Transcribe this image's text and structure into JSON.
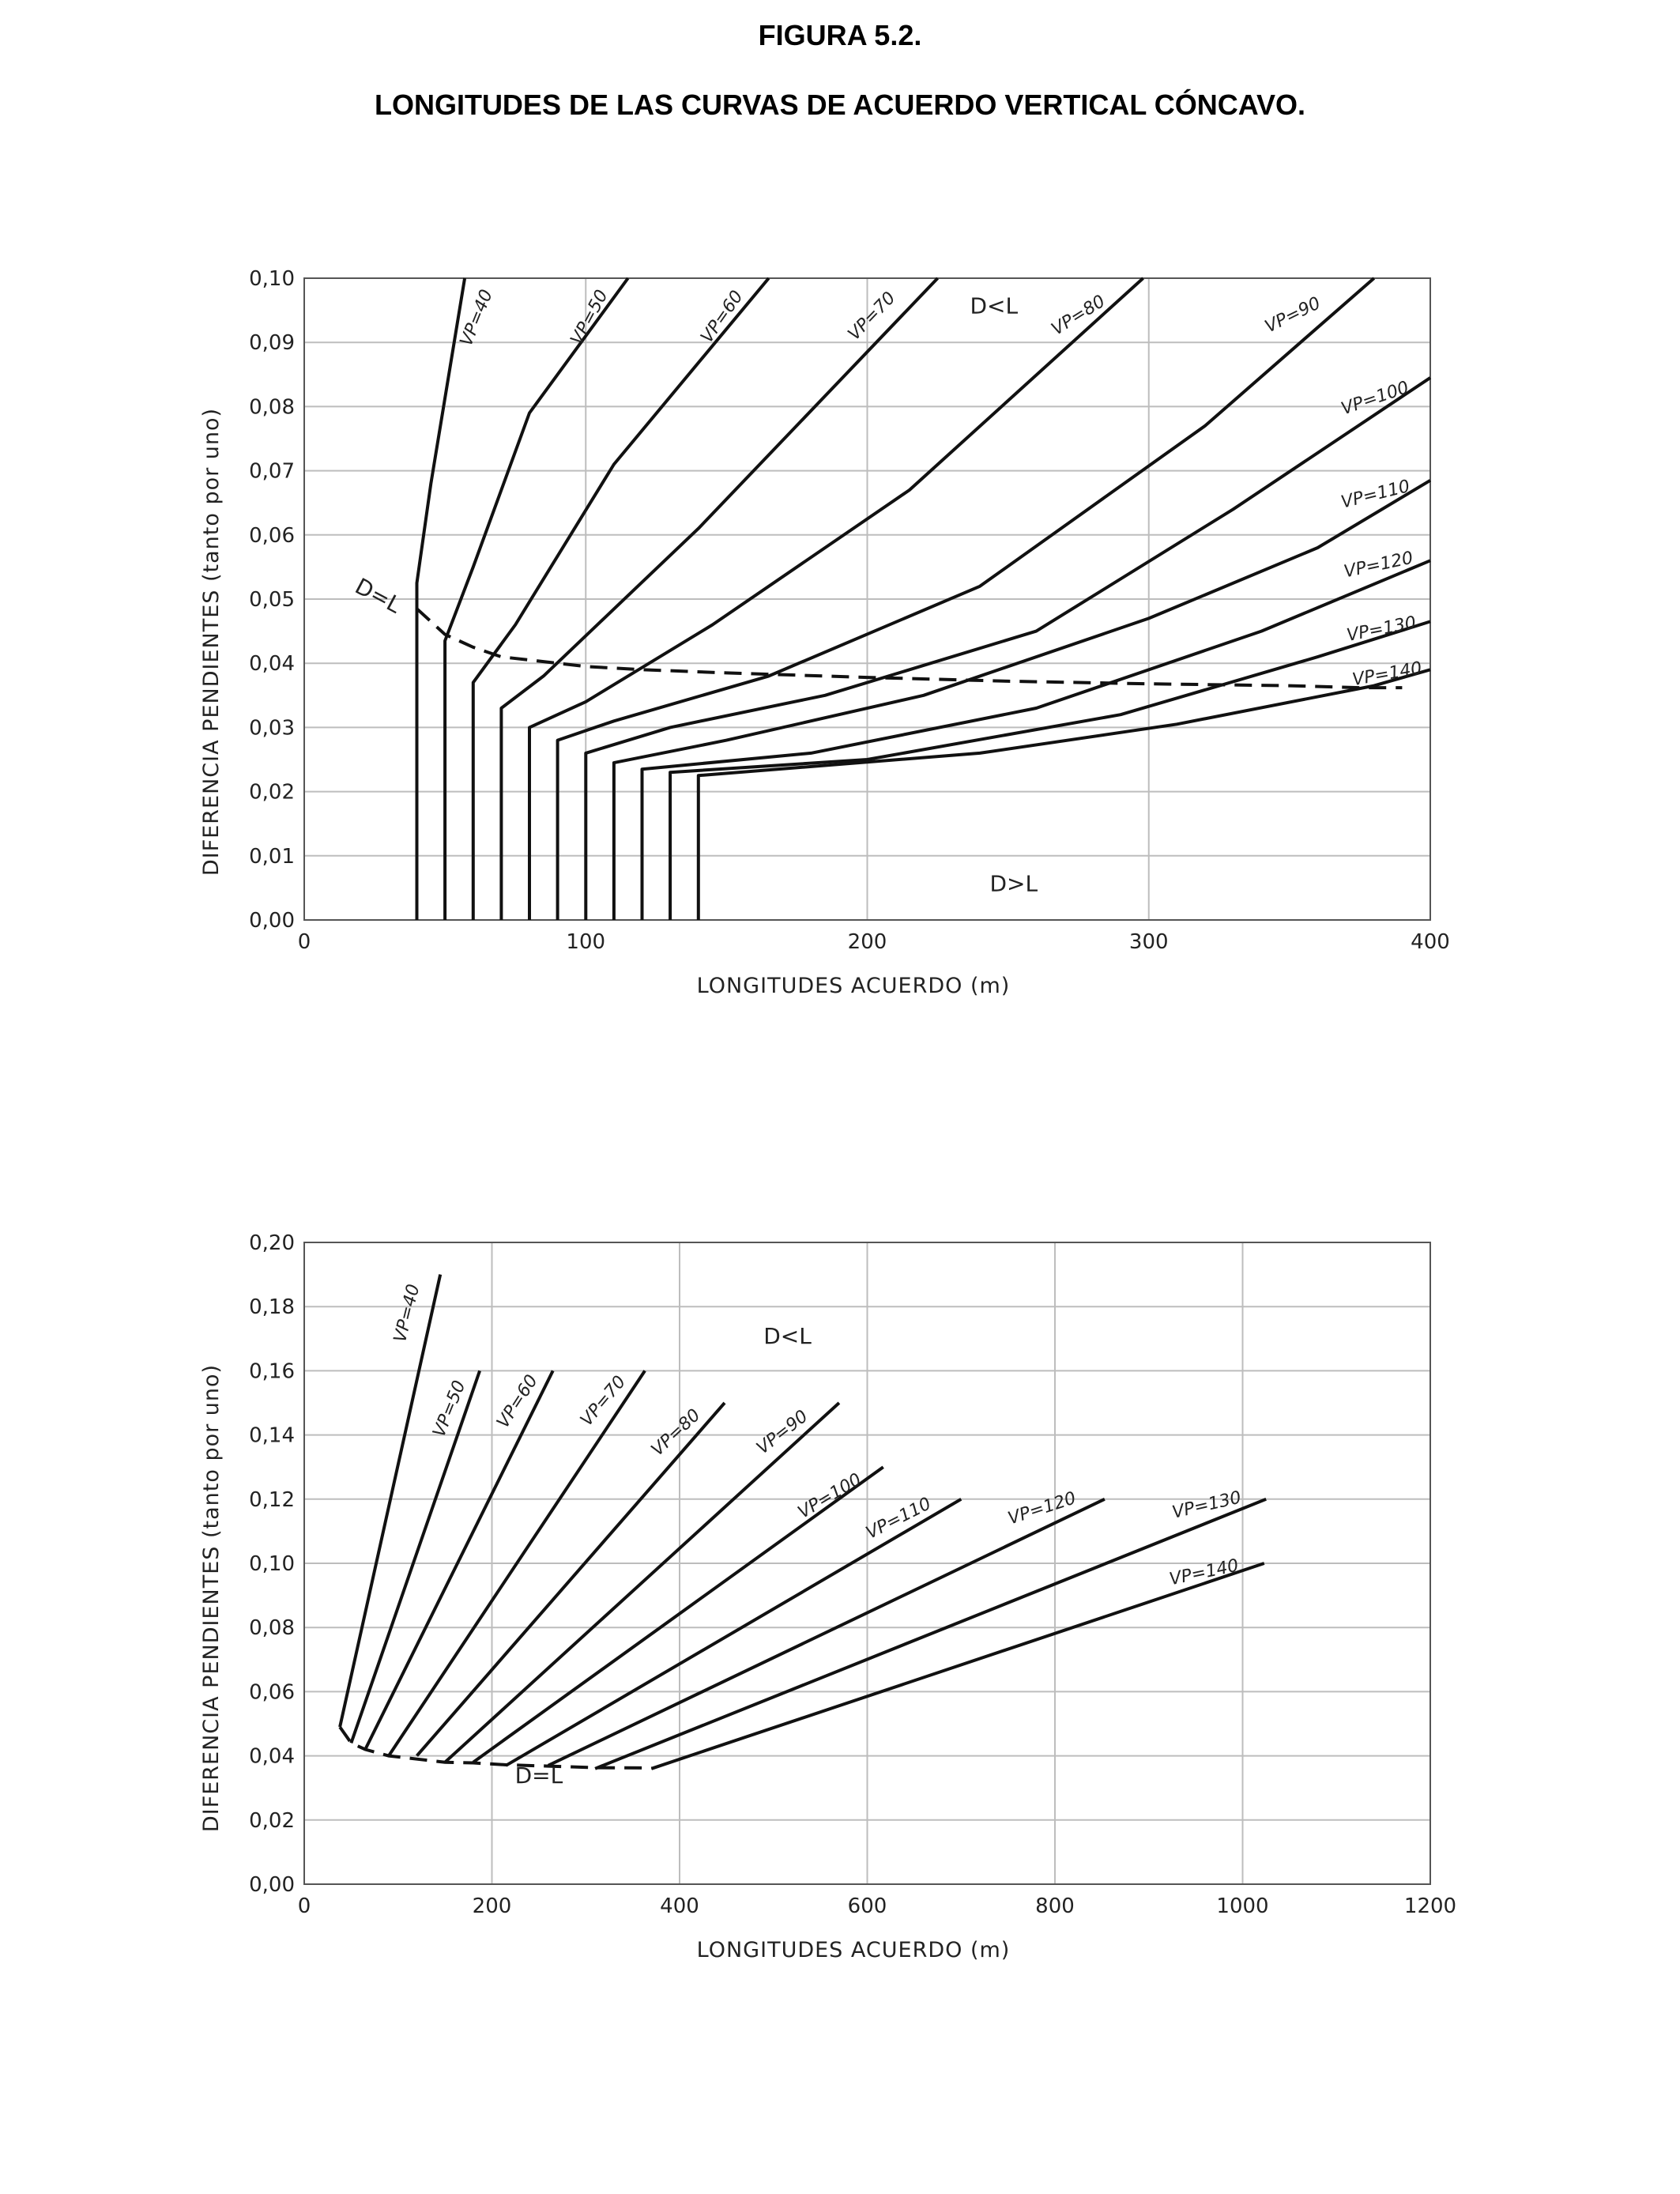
{
  "figure": {
    "label": "FIGURA 5.2.",
    "caption": "LONGITUDES DE LAS CURVAS DE ACUERDO VERTICAL CÓNCAVO."
  },
  "chart_data": [
    {
      "type": "line",
      "xlabel": "LONGITUDES ACUERDO (m)",
      "ylabel": "DIFERENCIA PENDIENTES (tanto por uno)",
      "xlim": [
        0,
        400
      ],
      "ylim": [
        0,
        0.1
      ],
      "x_ticks": [
        0,
        100,
        200,
        300,
        400
      ],
      "x_tick_labels": [
        "0",
        "100",
        "200",
        "300",
        "400"
      ],
      "y_ticks": [
        0,
        0.01,
        0.02,
        0.03,
        0.04,
        0.05,
        0.06,
        0.07,
        0.08,
        0.09,
        0.1
      ],
      "y_tick_labels": [
        "0,00",
        "0,01",
        "0,02",
        "0,03",
        "0,04",
        "0,05",
        "0,06",
        "0,07",
        "0,08",
        "0,09",
        "0,10"
      ],
      "grid": true,
      "annotations": [
        {
          "text": "D<L",
          "x": 245,
          "y": 0.0945
        },
        {
          "text": "D>L",
          "x": 252,
          "y": 0.0045
        },
        {
          "text": "D=L",
          "x": 25,
          "y": 0.0495,
          "rotate": 28
        }
      ],
      "series": [
        {
          "name": "VP=40",
          "points": [
            [
              40,
              0
            ],
            [
              40,
              0.0525
            ],
            [
              45,
              0.068
            ],
            [
              57,
              0.1
            ]
          ],
          "label_at": [
            63,
            0.0935
          ],
          "label_rotate": -68
        },
        {
          "name": "VP=50",
          "points": [
            [
              50,
              0
            ],
            [
              50,
              0.0435
            ],
            [
              60,
              0.055
            ],
            [
              80,
              0.079
            ],
            [
              115,
              0.1
            ]
          ],
          "label_at": [
            103,
            0.0935
          ],
          "label_rotate": -62
        },
        {
          "name": "VP=60",
          "points": [
            [
              60,
              0
            ],
            [
              60,
              0.037
            ],
            [
              75,
              0.046
            ],
            [
              110,
              0.071
            ],
            [
              165,
              0.1
            ]
          ],
          "label_at": [
            150,
            0.0935
          ],
          "label_rotate": -55
        },
        {
          "name": "VP=70",
          "points": [
            [
              70,
              0
            ],
            [
              70,
              0.033
            ],
            [
              85,
              0.038
            ],
            [
              140,
              0.061
            ],
            [
              225,
              0.1
            ]
          ],
          "label_at": [
            203,
            0.0935
          ],
          "label_rotate": -46
        },
        {
          "name": "VP=80",
          "points": [
            [
              80,
              0
            ],
            [
              80,
              0.03
            ],
            [
              100,
              0.034
            ],
            [
              145,
              0.046
            ],
            [
              215,
              0.067
            ],
            [
              298,
              0.1
            ]
          ],
          "label_at": [
            276,
            0.0935
          ],
          "label_rotate": -32
        },
        {
          "name": "VP=90",
          "points": [
            [
              90,
              0
            ],
            [
              90,
              0.028
            ],
            [
              110,
              0.031
            ],
            [
              165,
              0.038
            ],
            [
              240,
              0.052
            ],
            [
              320,
              0.077
            ],
            [
              380,
              0.1
            ]
          ],
          "label_at": [
            352,
            0.0935
          ],
          "label_rotate": -26
        },
        {
          "name": "VP=100",
          "points": [
            [
              100,
              0
            ],
            [
              100,
              0.026
            ],
            [
              130,
              0.03
            ],
            [
              185,
              0.035
            ],
            [
              260,
              0.045
            ],
            [
              330,
              0.064
            ],
            [
              400,
              0.0845
            ]
          ],
          "label_at": [
            381,
            0.0805
          ],
          "label_rotate": -19
        },
        {
          "name": "VP=110",
          "points": [
            [
              110,
              0
            ],
            [
              110,
              0.0245
            ],
            [
              150,
              0.028
            ],
            [
              220,
              0.035
            ],
            [
              300,
              0.047
            ],
            [
              360,
              0.058
            ],
            [
              400,
              0.0685
            ]
          ],
          "label_at": [
            381,
            0.0655
          ],
          "label_rotate": -14
        },
        {
          "name": "VP=120",
          "points": [
            [
              120,
              0
            ],
            [
              120,
              0.0235
            ],
            [
              180,
              0.026
            ],
            [
              260,
              0.033
            ],
            [
              340,
              0.045
            ],
            [
              400,
              0.056
            ]
          ],
          "label_at": [
            382,
            0.0545
          ],
          "label_rotate": -12
        },
        {
          "name": "VP=130",
          "points": [
            [
              130,
              0
            ],
            [
              130,
              0.023
            ],
            [
              200,
              0.025
            ],
            [
              290,
              0.032
            ],
            [
              360,
              0.041
            ],
            [
              400,
              0.0465
            ]
          ],
          "label_at": [
            383,
            0.0445
          ],
          "label_rotate": -11
        },
        {
          "name": "VP=140",
          "points": [
            [
              140,
              0
            ],
            [
              140,
              0.0225
            ],
            [
              240,
              0.026
            ],
            [
              310,
              0.0305
            ],
            [
              380,
              0.0365
            ],
            [
              400,
              0.039
            ]
          ],
          "label_at": [
            385,
            0.0375
          ],
          "label_rotate": -10
        }
      ],
      "boundary": {
        "name": "D=L",
        "style": "dashed",
        "points": [
          [
            40,
            0.0485
          ],
          [
            50,
            0.0445
          ],
          [
            60,
            0.0425
          ],
          [
            70,
            0.041
          ],
          [
            80,
            0.0405
          ],
          [
            90,
            0.04
          ],
          [
            100,
            0.0395
          ],
          [
            120,
            0.039
          ],
          [
            150,
            0.0385
          ],
          [
            200,
            0.0378
          ],
          [
            250,
            0.0372
          ],
          [
            300,
            0.0368
          ],
          [
            350,
            0.0365
          ],
          [
            375,
            0.0362
          ],
          [
            390,
            0.0362
          ]
        ]
      }
    },
    {
      "type": "line",
      "xlabel": "LONGITUDES ACUERDO (m)",
      "ylabel": "DIFERENCIA PENDIENTES (tanto por uno)",
      "xlim": [
        0,
        1200
      ],
      "ylim": [
        0,
        0.2
      ],
      "x_ticks": [
        0,
        200,
        400,
        600,
        800,
        1000,
        1200
      ],
      "x_tick_labels": [
        "0",
        "200",
        "400",
        "600",
        "800",
        "1000",
        "1200"
      ],
      "y_ticks": [
        0,
        0.02,
        0.04,
        0.06,
        0.08,
        0.1,
        0.12,
        0.14,
        0.16,
        0.18,
        0.2
      ],
      "y_tick_labels": [
        "0,00",
        "0,02",
        "0,04",
        "0,06",
        "0,08",
        "0,10",
        "0,12",
        "0,14",
        "0,16",
        "0,18",
        "0,20"
      ],
      "grid": true,
      "annotations": [
        {
          "text": "D<L",
          "x": 515,
          "y": 0.1685
        },
        {
          "text": "D=L",
          "x": 250,
          "y": 0.0315
        }
      ],
      "series": [
        {
          "name": "VP=40",
          "points": [
            [
              38,
              0.049
            ],
            [
              145,
              0.19
            ]
          ],
          "label_at": [
            115,
            0.1775
          ],
          "label_rotate": -76
        },
        {
          "name": "VP=50",
          "points": [
            [
              50,
              0.044
            ],
            [
              187,
              0.16
            ]
          ],
          "label_at": [
            160,
            0.1475
          ],
          "label_rotate": -68
        },
        {
          "name": "VP=60",
          "points": [
            [
              65,
              0.042
            ],
            [
              265,
              0.16
            ]
          ],
          "label_at": [
            232,
            0.1495
          ],
          "label_rotate": -57
        },
        {
          "name": "VP=70",
          "points": [
            [
              90,
              0.04
            ],
            [
              363,
              0.16
            ]
          ],
          "label_at": [
            323,
            0.1495
          ],
          "label_rotate": -50
        },
        {
          "name": "VP=80",
          "points": [
            [
              120,
              0.04
            ],
            [
              448,
              0.15
            ]
          ],
          "label_at": [
            400,
            0.1395
          ],
          "label_rotate": -43
        },
        {
          "name": "VP=90",
          "points": [
            [
              150,
              0.038
            ],
            [
              570,
              0.15
            ]
          ],
          "label_at": [
            513,
            0.1395
          ],
          "label_rotate": -38
        },
        {
          "name": "VP=100",
          "points": [
            [
              180,
              0.038
            ],
            [
              617,
              0.13
            ]
          ],
          "label_at": [
            563,
            0.1195
          ],
          "label_rotate": -31
        },
        {
          "name": "VP=110",
          "points": [
            [
              215,
              0.037
            ],
            [
              700,
              0.12
            ]
          ],
          "label_at": [
            636,
            0.1125
          ],
          "label_rotate": -27
        },
        {
          "name": "VP=120",
          "points": [
            [
              260,
              0.037
            ],
            [
              853,
              0.12
            ]
          ],
          "label_at": [
            788,
            0.1155
          ],
          "label_rotate": -18
        },
        {
          "name": "VP=130",
          "points": [
            [
              310,
              0.036
            ],
            [
              1025,
              0.12
            ]
          ],
          "label_at": [
            963,
            0.1165
          ],
          "label_rotate": -13
        },
        {
          "name": "VP=140",
          "points": [
            [
              370,
              0.036
            ],
            [
              1023,
              0.1
            ]
          ],
          "label_at": [
            960,
            0.0955
          ],
          "label_rotate": -12
        }
      ],
      "boundary": {
        "name": "D=L",
        "style": "dashed",
        "points": [
          [
            38,
            0.049
          ],
          [
            50,
            0.044
          ],
          [
            65,
            0.042
          ],
          [
            90,
            0.04
          ],
          [
            120,
            0.039
          ],
          [
            150,
            0.038
          ],
          [
            180,
            0.0378
          ],
          [
            215,
            0.0372
          ],
          [
            260,
            0.0368
          ],
          [
            310,
            0.0363
          ],
          [
            370,
            0.0362
          ]
        ]
      }
    }
  ]
}
